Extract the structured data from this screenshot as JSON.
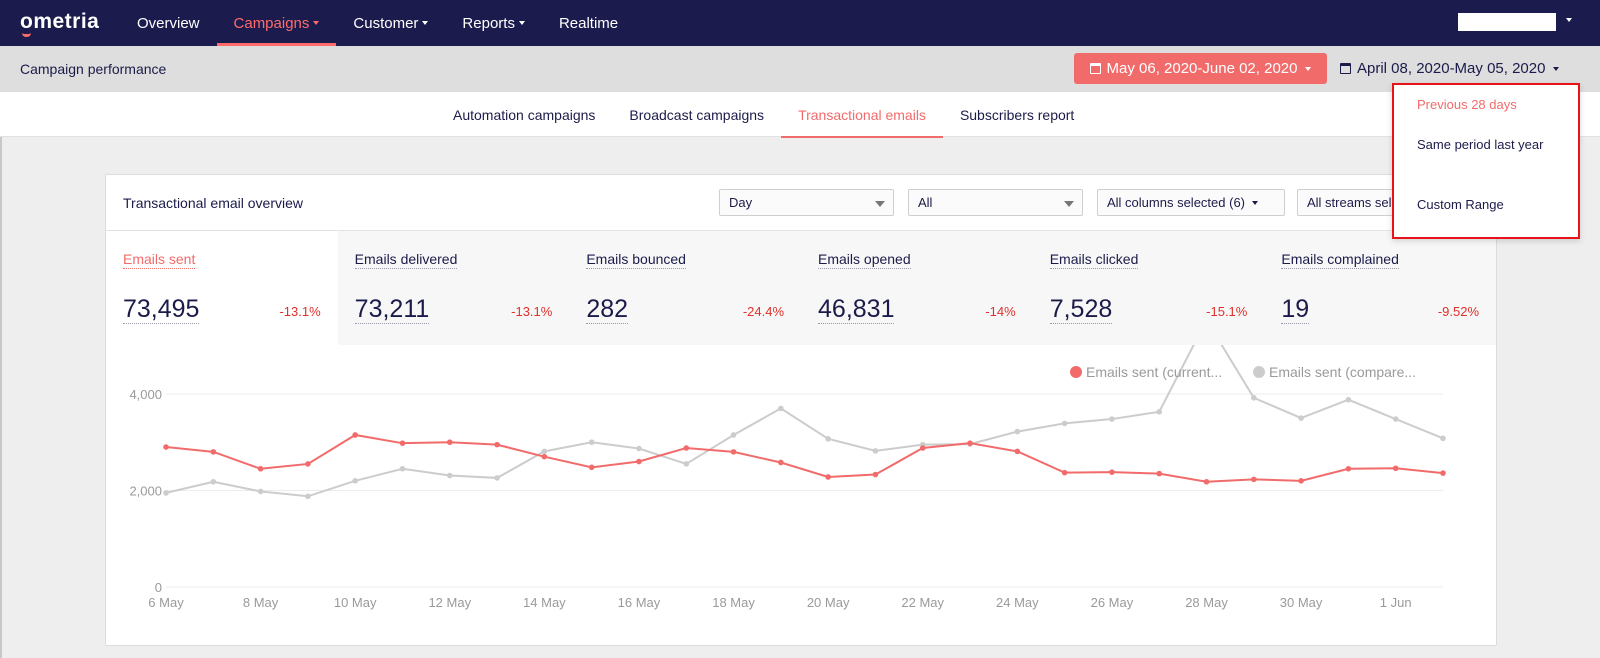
{
  "brand": {
    "name": "ometria",
    "accent": "#f26b6b",
    "nav_bg": "#1b1b4d"
  },
  "nav": {
    "items": [
      {
        "label": "Overview",
        "dropdown": false
      },
      {
        "label": "Campaigns",
        "dropdown": true,
        "active": true
      },
      {
        "label": "Customer",
        "dropdown": true
      },
      {
        "label": "Reports",
        "dropdown": true
      },
      {
        "label": "Realtime",
        "dropdown": false
      }
    ]
  },
  "header": {
    "title": "Campaign performance",
    "date_range": "May 06, 2020-June 02, 2020",
    "compare_range": "April 08, 2020-May 05, 2020"
  },
  "tabs": [
    {
      "label": "Automation campaigns"
    },
    {
      "label": "Broadcast campaigns"
    },
    {
      "label": "Transactional emails",
      "active": true
    },
    {
      "label": "Subscribers report"
    }
  ],
  "compare_menu": {
    "items": [
      {
        "label": "Previous 28 days",
        "active": true
      },
      {
        "label": "Same period last year"
      },
      {
        "label": "Custom Range"
      }
    ]
  },
  "card": {
    "title": "Transactional email overview",
    "filters": {
      "interval": "Day",
      "segment": "All",
      "columns": "All columns selected (6)",
      "streams": "All streams selected"
    }
  },
  "metrics": [
    {
      "label": "Emails sent",
      "value": "73,495",
      "change": "-13.1%",
      "active": true
    },
    {
      "label": "Emails delivered",
      "value": "73,211",
      "change": "-13.1%"
    },
    {
      "label": "Emails bounced",
      "value": "282",
      "change": "-24.4%"
    },
    {
      "label": "Emails opened",
      "value": "46,831",
      "change": "-14%"
    },
    {
      "label": "Emails clicked",
      "value": "7,528",
      "change": "-15.1%"
    },
    {
      "label": "Emails complained",
      "value": "19",
      "change": "-9.52%"
    }
  ],
  "chart_data": {
    "type": "line",
    "x": [
      "6 May",
      "7 May",
      "8 May",
      "9 May",
      "10 May",
      "11 May",
      "12 May",
      "13 May",
      "14 May",
      "15 May",
      "16 May",
      "17 May",
      "18 May",
      "19 May",
      "20 May",
      "21 May",
      "22 May",
      "23 May",
      "24 May",
      "25 May",
      "26 May",
      "27 May",
      "28 May",
      "29 May",
      "30 May",
      "31 May",
      "1 Jun",
      "2 Jun"
    ],
    "x_tick_labels": [
      "6 May",
      "8 May",
      "10 May",
      "12 May",
      "14 May",
      "16 May",
      "18 May",
      "20 May",
      "22 May",
      "24 May",
      "26 May",
      "28 May",
      "30 May",
      "1 Jun"
    ],
    "y_tick_labels": [
      "0",
      "2,000",
      "4,000"
    ],
    "ylim": [
      0,
      4600
    ],
    "series": [
      {
        "name": "Emails sent (current...",
        "color": "#f26b6b",
        "values": [
          2900,
          2800,
          2450,
          2550,
          3150,
          2980,
          3000,
          2950,
          2700,
          2480,
          2600,
          2880,
          2800,
          2580,
          2280,
          2330,
          2880,
          2980,
          2810,
          2370,
          2380,
          2350,
          2180,
          2230,
          2200,
          2450,
          2460,
          2360
        ]
      },
      {
        "name": "Emails sent (compare...",
        "color": "#cccccc",
        "values": [
          1950,
          2180,
          1980,
          1880,
          2200,
          2450,
          2310,
          2260,
          2810,
          3000,
          2870,
          2550,
          3150,
          3700,
          3070,
          2820,
          2950,
          2960,
          3220,
          3390,
          3480,
          3630,
          5530,
          3920,
          3500,
          3880,
          3480,
          3080
        ]
      }
    ],
    "grid": true,
    "legend": "top-right"
  }
}
